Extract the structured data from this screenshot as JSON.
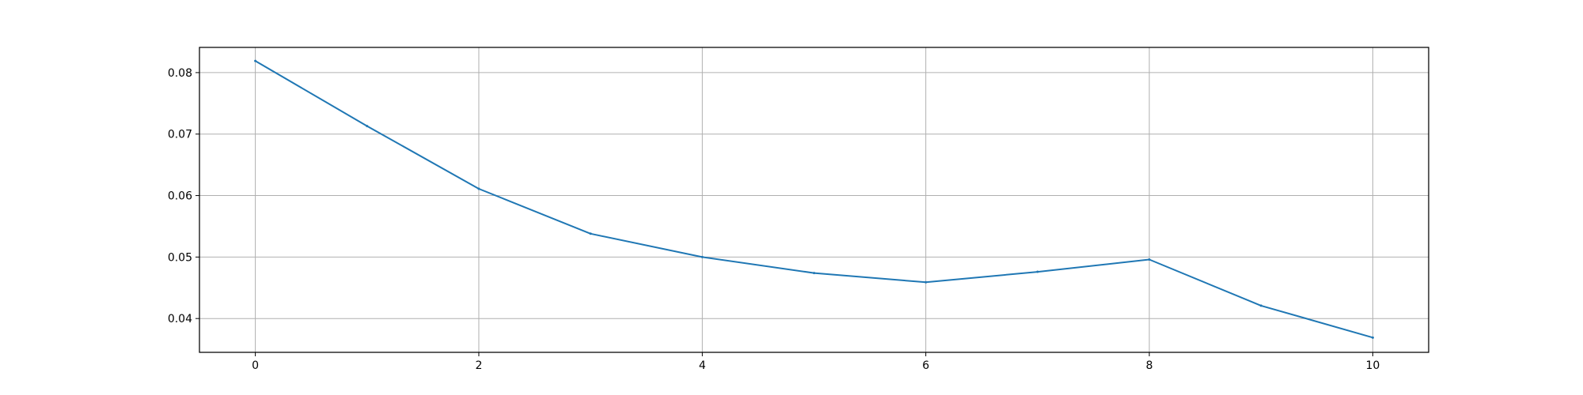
{
  "chart_data": {
    "type": "line",
    "title": "",
    "xlabel": "",
    "ylabel": "",
    "xlim": [
      -0.5,
      10.5
    ],
    "ylim": [
      0.0345,
      0.0841
    ],
    "xticks": [
      0,
      2,
      4,
      6,
      8,
      10
    ],
    "xtick_labels": [
      "0",
      "2",
      "4",
      "6",
      "8",
      "10"
    ],
    "yticks": [
      0.04,
      0.05,
      0.06,
      0.07,
      0.08
    ],
    "ytick_labels": [
      "0.04",
      "0.05",
      "0.06",
      "0.07",
      "0.08"
    ],
    "grid": true,
    "legend": "none",
    "series": [
      {
        "color": "#1f77b4",
        "x": [
          0,
          1,
          2,
          3,
          4,
          5,
          6,
          7,
          8,
          9,
          10
        ],
        "y": [
          0.0819,
          0.0713,
          0.0611,
          0.0538,
          0.05,
          0.0474,
          0.0459,
          0.0476,
          0.0496,
          0.0421,
          0.0369
        ]
      }
    ]
  }
}
